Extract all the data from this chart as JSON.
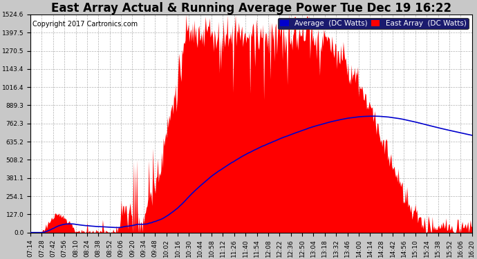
{
  "title": "East Array Actual & Running Average Power Tue Dec 19 16:22",
  "copyright": "Copyright 2017 Cartronics.com",
  "legend_labels": [
    "Average  (DC Watts)",
    "East Array  (DC Watts)"
  ],
  "legend_colors": [
    "#0000cd",
    "#ff0000"
  ],
  "bg_color": "#c8c8c8",
  "plot_bg_color": "#ffffff",
  "area_color": "#ff0000",
  "line_color": "#0000cd",
  "ylim": [
    0,
    1524.6
  ],
  "yticks": [
    0.0,
    127.0,
    254.1,
    381.1,
    508.2,
    635.2,
    762.3,
    889.3,
    1016.4,
    1143.4,
    1270.5,
    1397.5,
    1524.6
  ],
  "title_fontsize": 12,
  "copyright_fontsize": 7,
  "tick_fontsize": 6.5,
  "legend_fontsize": 7.5,
  "xtick_labels": [
    "07:14",
    "07:28",
    "07:42",
    "07:56",
    "08:10",
    "08:24",
    "08:38",
    "08:52",
    "09:06",
    "09:20",
    "09:34",
    "09:48",
    "10:02",
    "10:16",
    "10:30",
    "10:44",
    "10:58",
    "11:12",
    "11:26",
    "11:40",
    "11:54",
    "12:08",
    "12:22",
    "12:36",
    "12:50",
    "13:04",
    "13:18",
    "13:32",
    "13:46",
    "14:00",
    "14:14",
    "14:28",
    "14:42",
    "14:56",
    "15:10",
    "15:24",
    "15:38",
    "15:52",
    "16:06",
    "16:20"
  ]
}
